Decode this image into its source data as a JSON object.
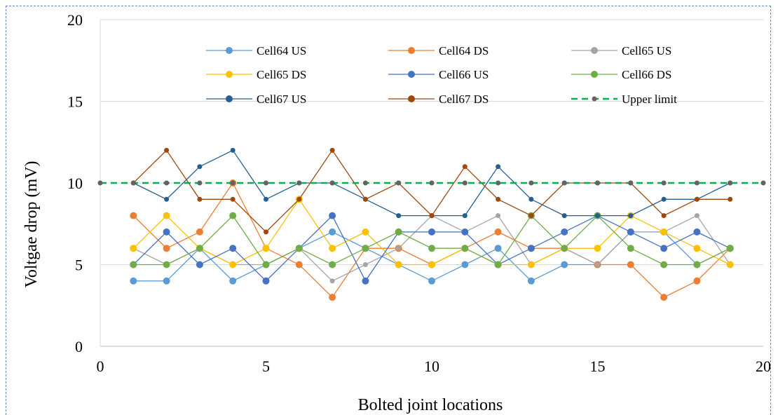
{
  "chart_data": {
    "type": "line",
    "xlabel": "Bolted joint locations",
    "ylabel": "Voltgae drop (mV)",
    "xlim": [
      0,
      20
    ],
    "ylim": [
      0,
      20
    ],
    "x_ticks": [
      "0",
      "5",
      "10",
      "15",
      "20"
    ],
    "y_ticks": [
      "0",
      "5",
      "10",
      "15",
      "20"
    ],
    "grid": "horizontal",
    "legend_placement": "top",
    "series": [
      {
        "name": "Cell64 US",
        "color": "#5b9bd5",
        "style": "solid",
        "x": [
          1,
          2,
          3,
          4,
          5,
          6,
          7,
          8,
          9,
          10,
          11,
          12,
          13,
          14,
          15,
          16,
          17,
          18,
          19
        ],
        "y": [
          4,
          4,
          6,
          4,
          5,
          6,
          7,
          6,
          5,
          4,
          5,
          6,
          4,
          5,
          5,
          7,
          7,
          5,
          6
        ]
      },
      {
        "name": "Cell64 DS",
        "color": "#ed7d31",
        "style": "solid",
        "x": [
          1,
          2,
          3,
          4,
          5,
          6,
          7,
          8,
          9,
          10,
          11,
          12,
          13,
          14,
          15,
          16,
          17,
          18,
          19
        ],
        "y": [
          8,
          6,
          7,
          10,
          6,
          5,
          3,
          6,
          6,
          5,
          6,
          7,
          6,
          6,
          5,
          5,
          3,
          4,
          6
        ]
      },
      {
        "name": "Cell65 US",
        "color": "#a5a5a5",
        "style": "solid",
        "x": [
          1,
          2,
          3,
          4,
          5,
          6,
          7,
          8,
          9,
          10,
          11,
          12,
          13,
          14,
          15,
          16,
          17,
          18,
          19
        ],
        "y": [
          6,
          5,
          6,
          5,
          5,
          6,
          4,
          5,
          6,
          8,
          7,
          8,
          5,
          6,
          5,
          7,
          7,
          8,
          5
        ]
      },
      {
        "name": "Cell65 DS",
        "color": "#ffc000",
        "style": "solid",
        "x": [
          1,
          2,
          3,
          4,
          5,
          6,
          7,
          8,
          9,
          10,
          11,
          12,
          13,
          14,
          15,
          16,
          17,
          18,
          19
        ],
        "y": [
          6,
          8,
          6,
          5,
          6,
          9,
          6,
          7,
          5,
          5,
          6,
          5,
          5,
          6,
          6,
          8,
          7,
          6,
          5
        ]
      },
      {
        "name": "Cell66 US",
        "color": "#4472c4",
        "style": "solid",
        "x": [
          1,
          2,
          3,
          4,
          5,
          6,
          7,
          8,
          9,
          10,
          11,
          12,
          13,
          14,
          15,
          16,
          17,
          18,
          19
        ],
        "y": [
          5,
          7,
          5,
          6,
          4,
          6,
          8,
          4,
          7,
          7,
          7,
          5,
          6,
          7,
          8,
          7,
          6,
          7,
          6
        ]
      },
      {
        "name": "Cell66 DS",
        "color": "#70ad47",
        "style": "solid",
        "x": [
          1,
          2,
          3,
          4,
          5,
          6,
          7,
          8,
          9,
          10,
          11,
          12,
          13,
          14,
          15,
          16,
          17,
          18,
          19
        ],
        "y": [
          5,
          5,
          6,
          8,
          5,
          6,
          5,
          6,
          7,
          6,
          6,
          5,
          8,
          6,
          8,
          6,
          5,
          5,
          6
        ]
      },
      {
        "name": "Cell67 US",
        "color": "#255e91",
        "style": "solid",
        "x": [
          1,
          2,
          3,
          4,
          5,
          6,
          7,
          8,
          9,
          10,
          11,
          12,
          13,
          14,
          15,
          16,
          17,
          18,
          19
        ],
        "y": [
          10,
          9,
          11,
          12,
          9,
          10,
          10,
          9,
          8,
          8,
          8,
          11,
          9,
          8,
          8,
          8,
          9,
          9,
          10
        ]
      },
      {
        "name": "Cell67 DS",
        "color": "#9e480e",
        "style": "solid",
        "x": [
          1,
          2,
          3,
          4,
          5,
          6,
          7,
          8,
          9,
          10,
          11,
          12,
          13,
          14,
          15,
          16,
          17,
          18,
          19
        ],
        "y": [
          10,
          12,
          9,
          9,
          7,
          9,
          12,
          9,
          10,
          8,
          11,
          9,
          8,
          10,
          10,
          10,
          8,
          9,
          9
        ]
      },
      {
        "name": "Upper limit",
        "color": "#00b050",
        "marker_color": "#636363",
        "style": "dashed",
        "x": [
          0,
          1,
          2,
          3,
          4,
          5,
          6,
          7,
          8,
          9,
          10,
          11,
          12,
          13,
          14,
          15,
          16,
          17,
          18,
          19,
          20
        ],
        "y": [
          10,
          10,
          10,
          10,
          10,
          10,
          10,
          10,
          10,
          10,
          10,
          10,
          10,
          10,
          10,
          10,
          10,
          10,
          10,
          10,
          10
        ]
      }
    ]
  }
}
